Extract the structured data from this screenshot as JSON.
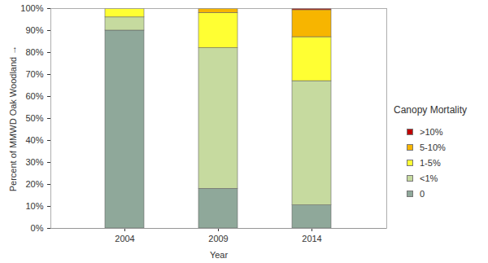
{
  "chart_data": {
    "type": "bar",
    "stacked": true,
    "xlabel": "Year",
    "ylabel": "Percent of MMWD Oak Woodland",
    "legend_title": "Canopy Mortality",
    "legend": "right",
    "grid": false,
    "categories": [
      "2004",
      "2009",
      "2014"
    ],
    "series": [
      {
        "name": "0",
        "color": "#8fa89a",
        "values": [
          90,
          18,
          10.5
        ]
      },
      {
        "name": "<1%",
        "color": "#c6da9f",
        "values": [
          6,
          64,
          56.5
        ]
      },
      {
        "name": "1-5%",
        "color": "#ffff33",
        "values": [
          4,
          16,
          20
        ]
      },
      {
        "name": "5-10%",
        "color": "#f7b500",
        "values": [
          0,
          2,
          12.3
        ]
      },
      {
        "name": ">10%",
        "color": "#c00000",
        "values": [
          0,
          0,
          0.7
        ]
      }
    ],
    "ylim": [
      0,
      100
    ],
    "yticks": [
      {
        "value": 0,
        "label": "0%"
      },
      {
        "value": 10,
        "label": "10%"
      },
      {
        "value": 20,
        "label": "20%"
      },
      {
        "value": 30,
        "label": "30%"
      },
      {
        "value": 40,
        "label": "40%"
      },
      {
        "value": 50,
        "label": "50%"
      },
      {
        "value": 60,
        "label": "60%"
      },
      {
        "value": 70,
        "label": "70%"
      },
      {
        "value": 80,
        "label": "80%"
      },
      {
        "value": 90,
        "label": "90%"
      },
      {
        "value": 100,
        "label": "100%"
      }
    ]
  }
}
